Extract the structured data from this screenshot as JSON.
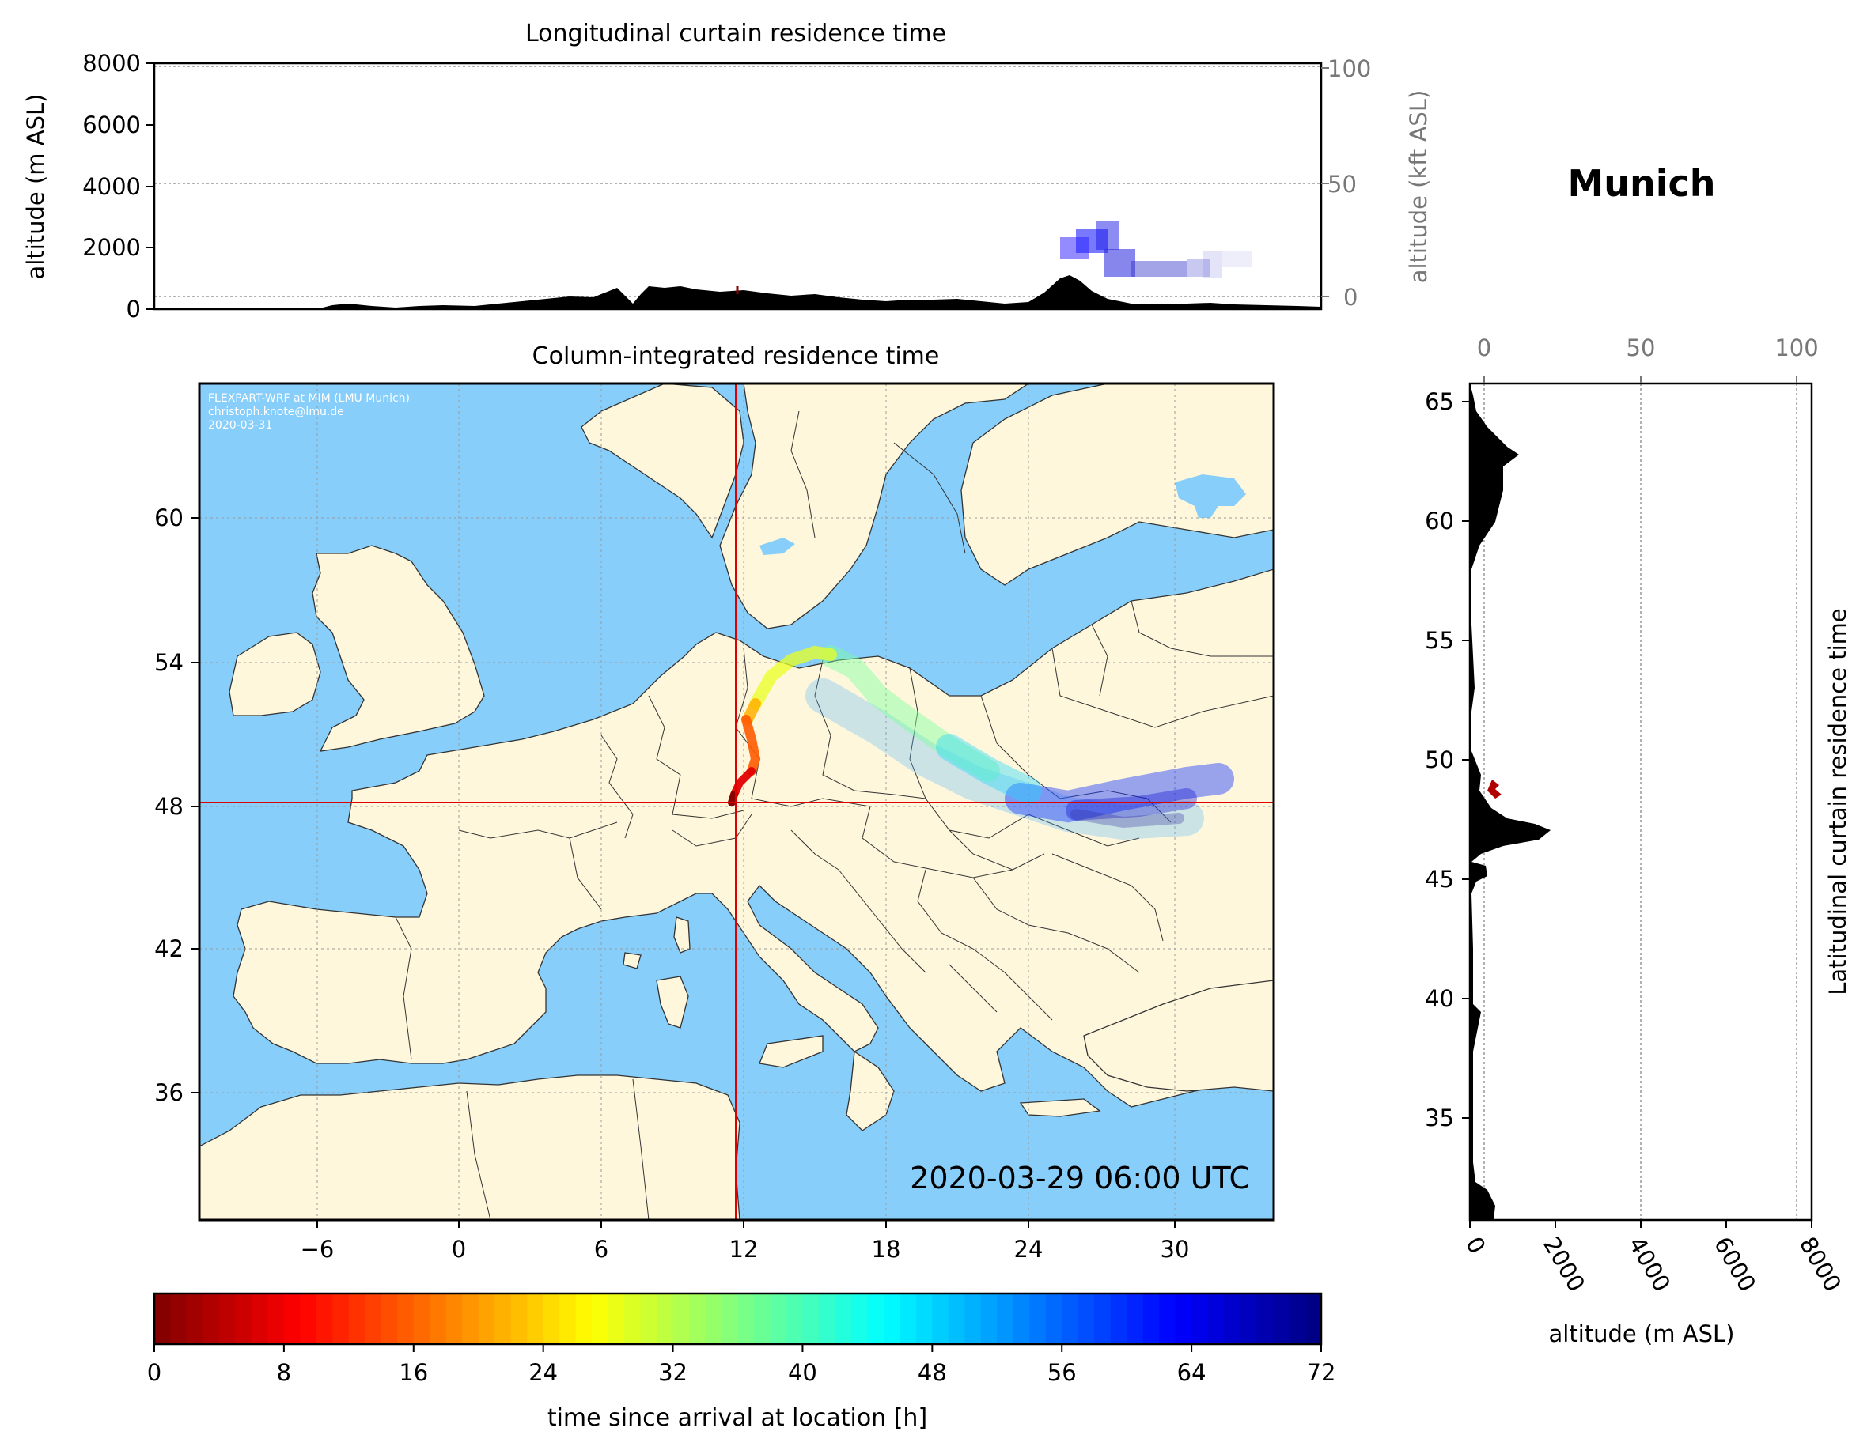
{
  "location": "Munich",
  "top_panel": {
    "title": "Longitudinal curtain residence time",
    "ylabel": "altitude (m ASL)",
    "ylabel2": "altitude (kft ASL)",
    "yticks": [
      "0",
      "2000",
      "4000",
      "6000",
      "8000"
    ],
    "yticks2": [
      "0",
      "50",
      "100"
    ]
  },
  "map_panel": {
    "title": "Column-integrated residence time",
    "credit": [
      "FLEXPART-WRF at MIM (LMU Munich)",
      "christoph.knote@lmu.de",
      "2020-03-31"
    ],
    "timestamp": "2020-03-29 06:00 UTC",
    "xticks": [
      "−6",
      "0",
      "6",
      "12",
      "18",
      "24",
      "30"
    ],
    "yticks": [
      "60",
      "54",
      "48",
      "42",
      "36"
    ],
    "colors": {
      "sea": "#87cefa",
      "land": "#fff7dc",
      "crosshair": "#dd0000"
    }
  },
  "side_panel": {
    "ylabel": "Latitudinal curtain residence time",
    "xlabel": "altitude (m ASL)",
    "yticks": [
      "65",
      "60",
      "55",
      "50",
      "45",
      "40",
      "35"
    ],
    "xticks": [
      "0",
      "2000",
      "4000",
      "6000",
      "8000"
    ],
    "xticks2": [
      "0",
      "50",
      "100"
    ]
  },
  "colorbar": {
    "label": "time since arrival at location [h]",
    "ticks": [
      "0",
      "8",
      "16",
      "24",
      "32",
      "40",
      "48",
      "56",
      "64",
      "72"
    ],
    "min": 0,
    "max": 72,
    "cmap": "jet_r"
  }
}
